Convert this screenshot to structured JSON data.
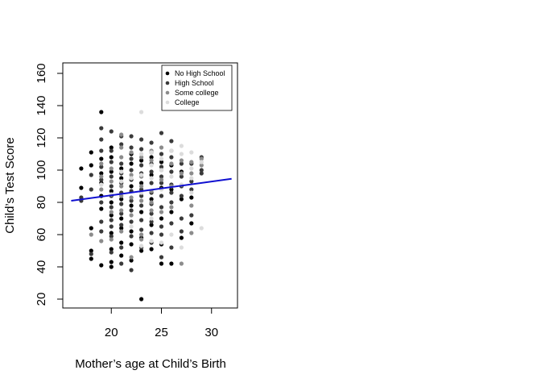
{
  "chart_data": {
    "type": "scatter",
    "title": "",
    "xlabel": "Mother’s age at Child’s Birth",
    "ylabel": "Child’s Test Score",
    "xlim": [
      15,
      32
    ],
    "ylim": [
      15,
      165
    ],
    "x_ticks": [
      20,
      25,
      30
    ],
    "y_ticks": [
      20,
      40,
      60,
      80,
      100,
      120,
      140,
      160
    ],
    "grid": false,
    "legend_position": "top-right",
    "series": [
      {
        "name": "No High School",
        "color": "#000000",
        "points": [
          [
            17,
            101
          ],
          [
            17,
            89
          ],
          [
            18,
            111
          ],
          [
            18,
            103
          ],
          [
            18,
            64
          ],
          [
            18,
            50
          ],
          [
            18,
            45
          ],
          [
            19,
            136
          ],
          [
            19,
            107
          ],
          [
            19,
            98
          ],
          [
            19,
            92
          ],
          [
            19,
            84
          ],
          [
            19,
            76
          ],
          [
            19,
            41
          ],
          [
            20,
            114
          ],
          [
            20,
            108
          ],
          [
            20,
            99
          ],
          [
            20,
            87
          ],
          [
            20,
            80
          ],
          [
            20,
            72
          ],
          [
            20,
            61
          ],
          [
            20,
            51
          ],
          [
            20,
            43
          ],
          [
            20,
            40
          ],
          [
            21,
            101
          ],
          [
            21,
            95
          ],
          [
            21,
            82
          ],
          [
            21,
            70
          ],
          [
            21,
            64
          ],
          [
            21,
            55
          ],
          [
            21,
            47
          ],
          [
            22,
            110
          ],
          [
            22,
            104
          ],
          [
            22,
            90
          ],
          [
            22,
            78
          ],
          [
            22,
            62
          ],
          [
            22,
            54
          ],
          [
            22,
            44
          ],
          [
            23,
            106
          ],
          [
            23,
            92
          ],
          [
            23,
            74
          ],
          [
            23,
            58
          ],
          [
            23,
            50
          ],
          [
            23,
            20
          ],
          [
            24,
            108
          ],
          [
            24,
            97
          ],
          [
            24,
            82
          ],
          [
            24,
            66
          ],
          [
            24,
            51
          ],
          [
            25,
            105
          ],
          [
            25,
            89
          ],
          [
            25,
            70
          ],
          [
            25,
            54
          ],
          [
            25,
            42
          ],
          [
            26,
            103
          ],
          [
            26,
            88
          ],
          [
            26,
            74
          ],
          [
            26,
            42
          ],
          [
            27,
            99
          ],
          [
            27,
            82
          ],
          [
            27,
            58
          ],
          [
            28,
            83
          ],
          [
            28,
            67
          ]
        ]
      },
      {
        "name": "High School",
        "color": "#3a3a3a",
        "points": [
          [
            17,
            83
          ],
          [
            17,
            81
          ],
          [
            18,
            97
          ],
          [
            18,
            88
          ],
          [
            18,
            48
          ],
          [
            19,
            126
          ],
          [
            19,
            119
          ],
          [
            19,
            112
          ],
          [
            19,
            102
          ],
          [
            19,
            94
          ],
          [
            19,
            80
          ],
          [
            19,
            68
          ],
          [
            19,
            62
          ],
          [
            20,
            124
          ],
          [
            20,
            112
          ],
          [
            20,
            105
          ],
          [
            20,
            96
          ],
          [
            20,
            90
          ],
          [
            20,
            84
          ],
          [
            20,
            77
          ],
          [
            20,
            69
          ],
          [
            20,
            65
          ],
          [
            20,
            59
          ],
          [
            20,
            49
          ],
          [
            21,
            121
          ],
          [
            21,
            116
          ],
          [
            21,
            104
          ],
          [
            21,
            98
          ],
          [
            21,
            92
          ],
          [
            21,
            86
          ],
          [
            21,
            79
          ],
          [
            21,
            73
          ],
          [
            21,
            66
          ],
          [
            21,
            52
          ],
          [
            21,
            42
          ],
          [
            22,
            121
          ],
          [
            22,
            114
          ],
          [
            22,
            107
          ],
          [
            22,
            100
          ],
          [
            22,
            94
          ],
          [
            22,
            87
          ],
          [
            22,
            81
          ],
          [
            22,
            75
          ],
          [
            22,
            68
          ],
          [
            22,
            59
          ],
          [
            22,
            38
          ],
          [
            23,
            119
          ],
          [
            23,
            113
          ],
          [
            23,
            103
          ],
          [
            23,
            98
          ],
          [
            23,
            88
          ],
          [
            23,
            84
          ],
          [
            23,
            78
          ],
          [
            23,
            69
          ],
          [
            23,
            63
          ],
          [
            23,
            52
          ],
          [
            24,
            117
          ],
          [
            24,
            111
          ],
          [
            24,
            104
          ],
          [
            24,
            99
          ],
          [
            24,
            92
          ],
          [
            24,
            86
          ],
          [
            24,
            79
          ],
          [
            24,
            73
          ],
          [
            24,
            68
          ],
          [
            24,
            61
          ],
          [
            24,
            55
          ],
          [
            25,
            123
          ],
          [
            25,
            110
          ],
          [
            25,
            102
          ],
          [
            25,
            96
          ],
          [
            25,
            92
          ],
          [
            25,
            84
          ],
          [
            25,
            77
          ],
          [
            25,
            65
          ],
          [
            25,
            60
          ],
          [
            25,
            46
          ],
          [
            26,
            118
          ],
          [
            26,
            108
          ],
          [
            26,
            99
          ],
          [
            26,
            91
          ],
          [
            26,
            86
          ],
          [
            26,
            80
          ],
          [
            26,
            67
          ],
          [
            26,
            52
          ],
          [
            27,
            104
          ],
          [
            27,
            96
          ],
          [
            27,
            90
          ],
          [
            27,
            84
          ],
          [
            27,
            70
          ],
          [
            27,
            62
          ],
          [
            28,
            104
          ],
          [
            28,
            93
          ],
          [
            28,
            88
          ],
          [
            28,
            72
          ],
          [
            29,
            108
          ],
          [
            29,
            100
          ],
          [
            29,
            98
          ]
        ]
      },
      {
        "name": "Some college",
        "color": "#8c8c8c",
        "points": [
          [
            18,
            60
          ],
          [
            19,
            104
          ],
          [
            19,
            96
          ],
          [
            19,
            88
          ],
          [
            19,
            56
          ],
          [
            20,
            101
          ],
          [
            20,
            93
          ],
          [
            20,
            74
          ],
          [
            20,
            57
          ],
          [
            21,
            122
          ],
          [
            21,
            114
          ],
          [
            21,
            108
          ],
          [
            21,
            90
          ],
          [
            21,
            84
          ],
          [
            21,
            75
          ],
          [
            21,
            62
          ],
          [
            22,
            111
          ],
          [
            22,
            97
          ],
          [
            22,
            83
          ],
          [
            22,
            72
          ],
          [
            22,
            46
          ],
          [
            23,
            108
          ],
          [
            23,
            96
          ],
          [
            23,
            90
          ],
          [
            23,
            81
          ],
          [
            23,
            60
          ],
          [
            23,
            57
          ],
          [
            24,
            112
          ],
          [
            24,
            106
          ],
          [
            24,
            87
          ],
          [
            24,
            80
          ],
          [
            24,
            75
          ],
          [
            25,
            114
          ],
          [
            25,
            100
          ],
          [
            25,
            94
          ],
          [
            25,
            74
          ],
          [
            26,
            112
          ],
          [
            26,
            104
          ],
          [
            26,
            90
          ],
          [
            26,
            77
          ],
          [
            27,
            106
          ],
          [
            27,
            98
          ],
          [
            27,
            42
          ],
          [
            28,
            105
          ],
          [
            28,
            98
          ],
          [
            28,
            78
          ],
          [
            28,
            61
          ],
          [
            29,
            107
          ],
          [
            29,
            103
          ]
        ]
      },
      {
        "name": "College",
        "color": "#dcdcdc",
        "points": [
          [
            19,
            91
          ],
          [
            20,
            85
          ],
          [
            21,
            93
          ],
          [
            21,
            99
          ],
          [
            22,
            95
          ],
          [
            22,
            65
          ],
          [
            23,
            136
          ],
          [
            23,
            110
          ],
          [
            23,
            97
          ],
          [
            23,
            86
          ],
          [
            23,
            53
          ],
          [
            24,
            111
          ],
          [
            24,
            103
          ],
          [
            24,
            95
          ],
          [
            24,
            70
          ],
          [
            24,
            56
          ],
          [
            25,
            107
          ],
          [
            25,
            100
          ],
          [
            25,
            88
          ],
          [
            25,
            55
          ],
          [
            26,
            112
          ],
          [
            26,
            96
          ],
          [
            26,
            60
          ],
          [
            27,
            115
          ],
          [
            27,
            110
          ],
          [
            27,
            91
          ],
          [
            27,
            52
          ],
          [
            28,
            111
          ],
          [
            28,
            101
          ],
          [
            28,
            95
          ],
          [
            28,
            86
          ],
          [
            29,
            105
          ],
          [
            29,
            64
          ]
        ]
      }
    ],
    "fit_line": {
      "color": "#1010d0",
      "x": [
        16,
        32
      ],
      "y": [
        81,
        94.6
      ]
    }
  }
}
